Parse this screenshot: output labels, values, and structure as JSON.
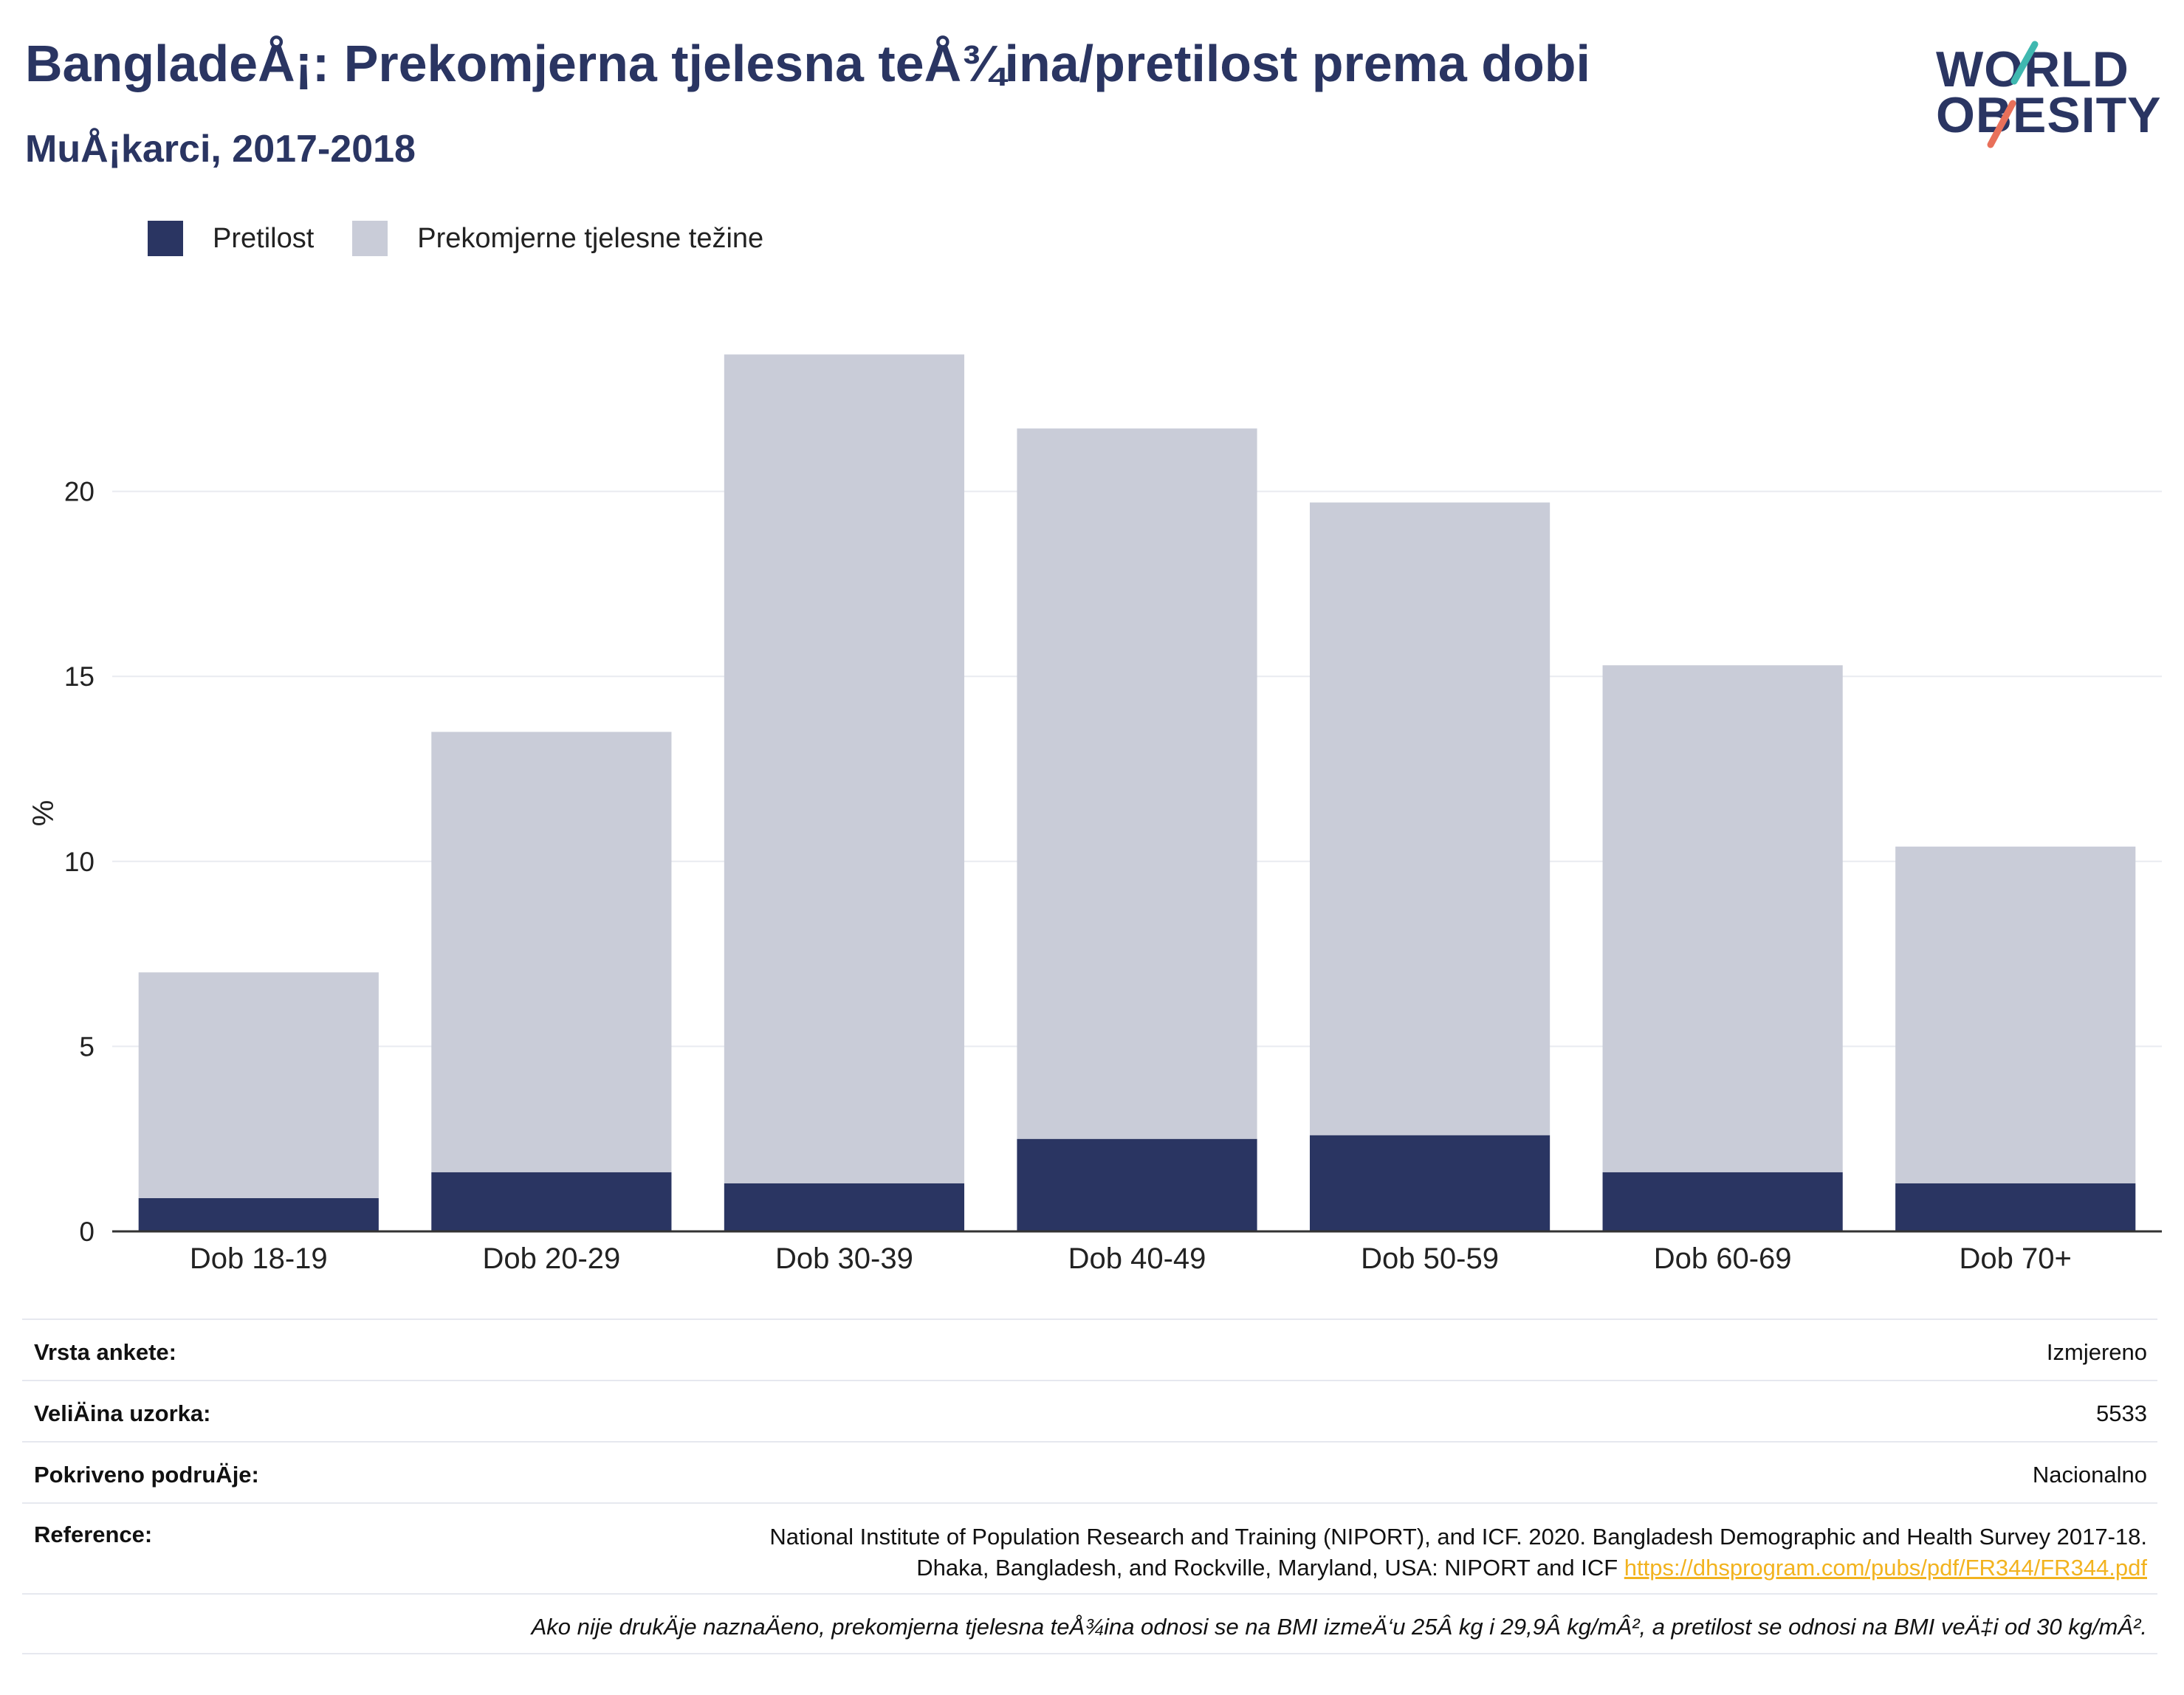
{
  "header": {
    "title": "BangladeÅ¡: Prekomjerna tjelesna teÅ¾ina/pretilost prema dobi",
    "subtitle": "MuÅ¡karci, 2017-2018"
  },
  "logo": {
    "line1": "WORLD",
    "line2": "OBESITY",
    "slash_colors": [
      "#3fb8b0",
      "#e8705a"
    ]
  },
  "colors": {
    "obesity": "#2a3562",
    "overweight": "#c9ccd8",
    "grid": "#e9ebf0",
    "axis": "#333333"
  },
  "chart_data": {
    "type": "bar",
    "stacked": true,
    "categories": [
      "Dob 18-19",
      "Dob 20-29",
      "Dob 30-39",
      "Dob 40-49",
      "Dob 50-59",
      "Dob 60-69",
      "Dob 70+"
    ],
    "series": [
      {
        "name": "Pretilost",
        "values": [
          0.9,
          1.6,
          1.3,
          2.5,
          2.6,
          1.6,
          1.3
        ]
      },
      {
        "name": "Prekomjerne tjelesne težine",
        "values": [
          6.1,
          11.9,
          22.4,
          19.2,
          17.1,
          13.7,
          9.1
        ]
      }
    ],
    "ylabel": "%",
    "ylim": [
      0,
      25
    ],
    "yticks": [
      0,
      5,
      10,
      15,
      20
    ],
    "grid": true,
    "legend_position": "top-left"
  },
  "info": {
    "survey_type_label": "Vrsta ankete:",
    "survey_type_value": "Izmjereno",
    "sample_size_label": "VeliÄ\u001fina uzorka:",
    "sample_size_value": "5533",
    "coverage_label": "Pokriveno podruÄ\u001fje:",
    "coverage_value": "Nacionalno",
    "reference_label": "Reference:",
    "reference_line1": "National Institute of Population Research and Training (NIPORT), and ICF. 2020. Bangladesh Demographic and Health Survey 2017-18.",
    "reference_line2": "Dhaka, Bangladesh, and Rockville, Maryland, USA: NIPORT and ICF",
    "reference_link": "https://dhsprogram.com/pubs/pdf/FR344/FR344.pdf",
    "footnote": "Ako nije drukÄ\u001fje naznaÄ\u001feno, prekomjerna tjelesna teÅ¾ina odnosi se na BMI izmeÄ‘u 25Â kg i 29,9Â kg/mÂ², a pretilost se odnosi na BMI veÄ‡i od 30 kg/mÂ²."
  }
}
